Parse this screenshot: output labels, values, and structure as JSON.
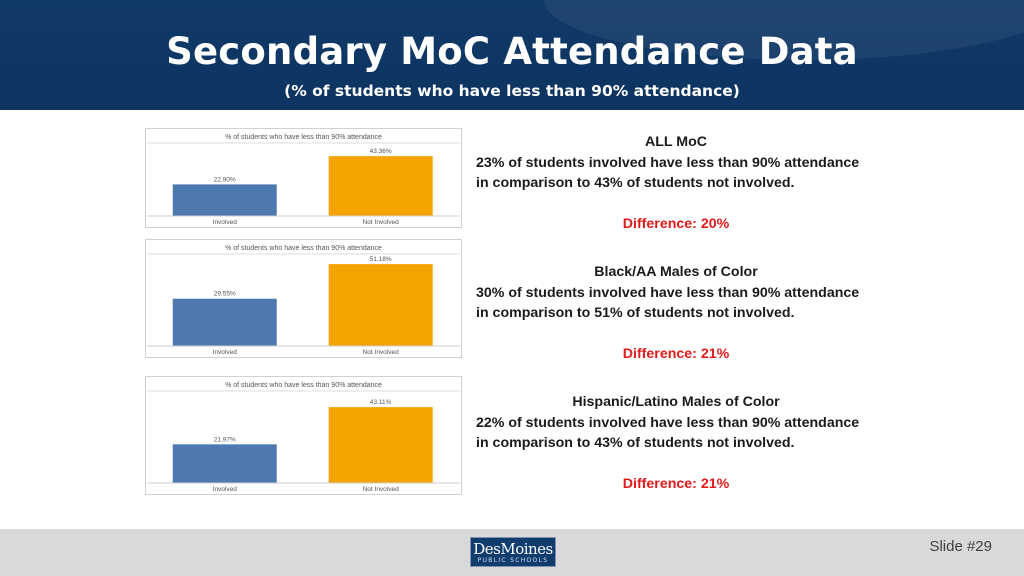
{
  "header": {
    "title": "Secondary MoC Attendance Data",
    "subtitle": "(% of students who have less than 90% attendance)"
  },
  "colors": {
    "involved": "#4e79b0",
    "not_involved": "#f4a300",
    "header_bg": "#0e365f",
    "difference_text": "#e01b1b"
  },
  "chart_data": [
    {
      "type": "bar",
      "title": "% of students who have less than 90% attendance",
      "categories": [
        "Involved",
        "Not Involved"
      ],
      "values": [
        22.9,
        43.36
      ],
      "value_labels": [
        "22.90%",
        "43.36%"
      ],
      "ylim": [
        0,
        50
      ]
    },
    {
      "type": "bar",
      "title": "% of students who have less than 90% attendance",
      "categories": [
        "Involved",
        "Not Involved"
      ],
      "values": [
        29.55,
        51.18
      ],
      "value_labels": [
        "29.55%",
        "51.18%"
      ],
      "ylim": [
        0,
        55
      ]
    },
    {
      "type": "bar",
      "title": "% of students who have less than 90% attendance",
      "categories": [
        "Involved",
        "Not Involved"
      ],
      "values": [
        21.97,
        43.11
      ],
      "value_labels": [
        "21.97%",
        "43.11%"
      ],
      "ylim": [
        0,
        50
      ]
    }
  ],
  "summaries": [
    {
      "heading": "ALL MoC",
      "line1": "23% of students involved have less than 90% attendance",
      "line2": "in comparison to 43% of students not involved.",
      "difference": "Difference: 20%"
    },
    {
      "heading": "Black/AA Males of Color",
      "line1": "30% of students involved have less than 90% attendance",
      "line2": "in comparison to 51% of students not involved.",
      "difference": "Difference: 21%"
    },
    {
      "heading": "Hispanic/Latino Males of Color",
      "line1": "22% of students involved have less than 90% attendance",
      "line2": "in comparison to 43% of students not involved.",
      "difference": "Difference: 21%"
    }
  ],
  "footer": {
    "logo_main": "DesMoines",
    "logo_sub": "PUBLIC SCHOOLS",
    "slide_number": "Slide #29"
  }
}
